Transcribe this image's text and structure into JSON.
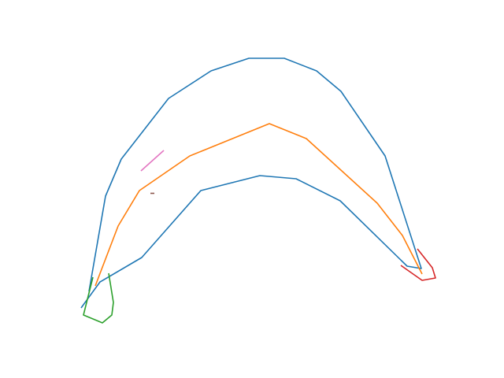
{
  "colors": {
    "background": "#ffffff",
    "outline": "#1f77b4",
    "centerline": "#ff7f0e",
    "left_marker": "#2ca02c",
    "right_marker": "#d62728",
    "pink_mark": "#e377c2",
    "brown_mark": "#8c564b"
  },
  "strokes": [
    {
      "name": "outline-stroke",
      "color_key": "outline"
    },
    {
      "name": "centerline-stroke",
      "color_key": "centerline"
    },
    {
      "name": "left-end-marker-stroke",
      "color_key": "left_marker"
    },
    {
      "name": "right-end-marker-stroke",
      "color_key": "right_marker"
    },
    {
      "name": "pink-dash-stroke",
      "color_key": "pink_mark"
    },
    {
      "name": "brown-dot-stroke",
      "color_key": "brown_mark"
    }
  ]
}
